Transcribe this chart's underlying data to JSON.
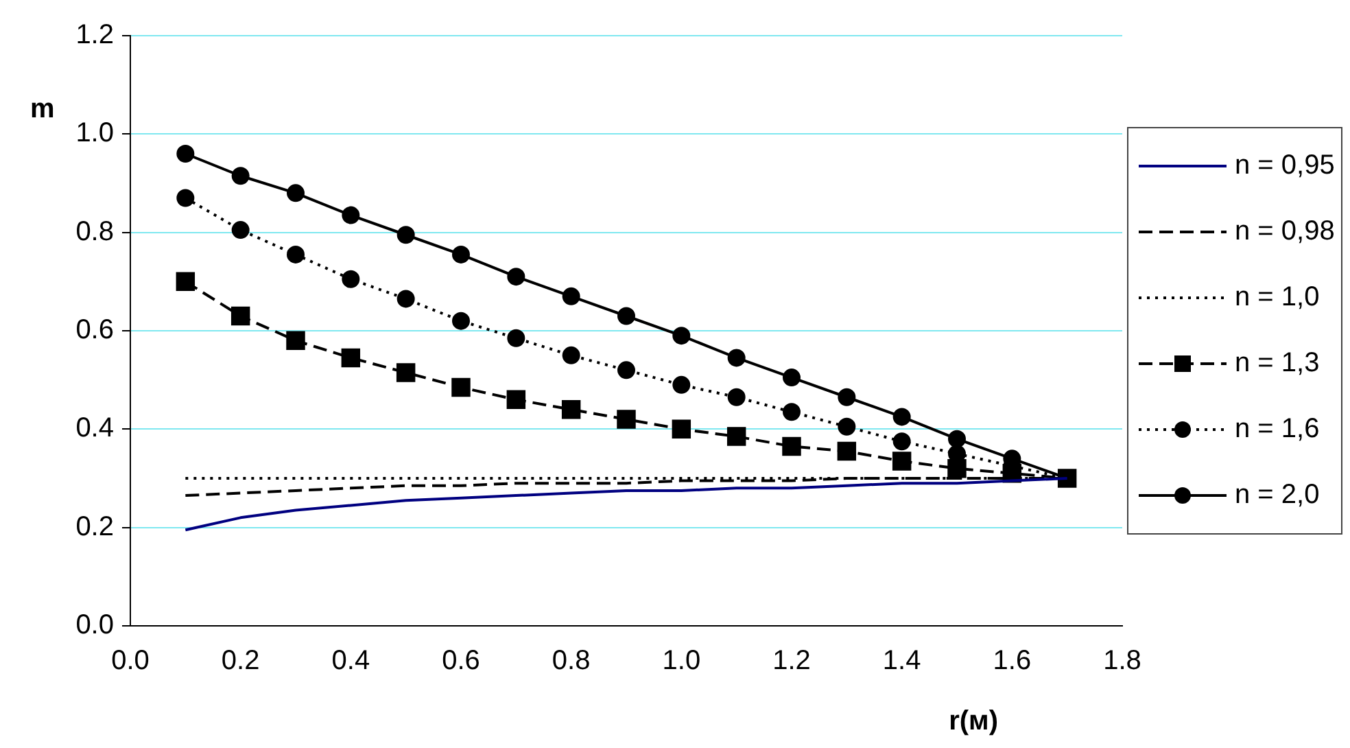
{
  "chart_data": {
    "type": "line",
    "xlabel": "r(м)",
    "ylabel": "m",
    "x": [
      0.1,
      0.2,
      0.3,
      0.4,
      0.5,
      0.6,
      0.7,
      0.8,
      0.9,
      1.0,
      1.1,
      1.2,
      1.3,
      1.4,
      1.5,
      1.6,
      1.7
    ],
    "xlim": [
      0,
      1.8
    ],
    "xticks": [
      {
        "value": 0,
        "label": "0.0"
      },
      0.2,
      0.4,
      0.6,
      0.8,
      {
        "value": 1,
        "label": "1.0"
      },
      1.2,
      1.4,
      1.6,
      1.8
    ],
    "ylim": [
      0,
      1.2
    ],
    "yticks": [
      {
        "value": 0,
        "label": "0.0"
      },
      0.2,
      0.4,
      0.6,
      0.8,
      {
        "value": 1,
        "label": "1.0"
      },
      1.2
    ],
    "grid": "y",
    "legend": "right",
    "series": [
      {
        "name": "n = 0,95",
        "color": "#000080",
        "line_style": "solid",
        "marker": "none",
        "values": [
          0.195,
          0.22,
          0.235,
          0.245,
          0.255,
          0.26,
          0.265,
          0.27,
          0.275,
          0.275,
          0.28,
          0.28,
          0.285,
          0.29,
          0.29,
          0.295,
          0.3
        ]
      },
      {
        "name": "n = 0,98",
        "color": "#000000",
        "line_style": "dashed",
        "marker": "none",
        "values": [
          0.265,
          0.27,
          0.275,
          0.28,
          0.285,
          0.285,
          0.29,
          0.29,
          0.29,
          0.295,
          0.295,
          0.295,
          0.3,
          0.3,
          0.3,
          0.3,
          0.3
        ]
      },
      {
        "name": "n = 1,0",
        "color": "#000000",
        "line_style": "dotted",
        "marker": "none",
        "values": [
          0.3,
          0.3,
          0.3,
          0.3,
          0.3,
          0.3,
          0.3,
          0.3,
          0.3,
          0.3,
          0.3,
          0.3,
          0.3,
          0.3,
          0.3,
          0.3,
          0.3
        ]
      },
      {
        "name": "n = 1,3",
        "color": "#000000",
        "line_style": "dashed",
        "marker": "square",
        "values": [
          0.7,
          0.63,
          0.58,
          0.545,
          0.515,
          0.485,
          0.46,
          0.44,
          0.42,
          0.4,
          0.385,
          0.365,
          0.355,
          0.335,
          0.32,
          0.31,
          0.3
        ]
      },
      {
        "name": "n = 1,6",
        "color": "#000000",
        "line_style": "dotted",
        "marker": "circle",
        "values": [
          0.87,
          0.805,
          0.755,
          0.705,
          0.665,
          0.62,
          0.585,
          0.55,
          0.52,
          0.49,
          0.465,
          0.435,
          0.405,
          0.375,
          0.35,
          0.325,
          0.3
        ]
      },
      {
        "name": "n = 2,0",
        "color": "#000000",
        "line_style": "solid",
        "marker": "circle",
        "values": [
          0.96,
          0.915,
          0.88,
          0.835,
          0.795,
          0.755,
          0.71,
          0.67,
          0.63,
          0.59,
          0.545,
          0.505,
          0.465,
          0.425,
          0.38,
          0.34,
          0.3
        ]
      }
    ]
  }
}
